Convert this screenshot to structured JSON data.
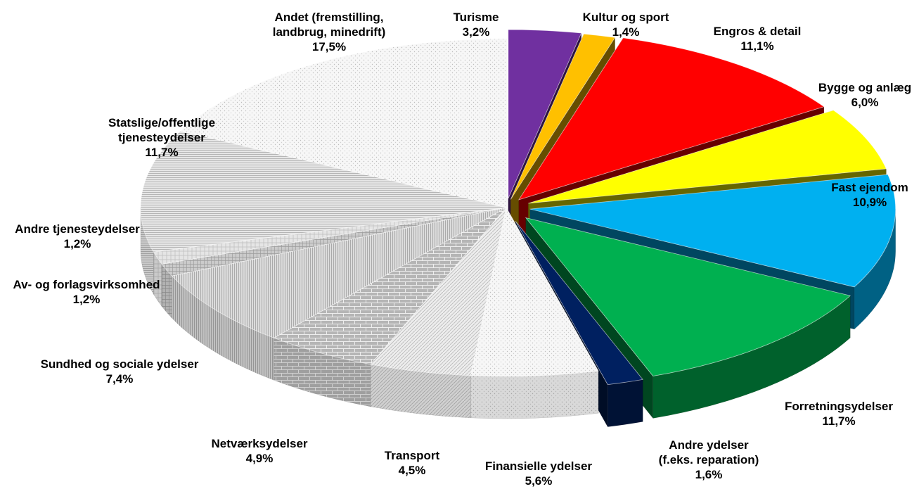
{
  "chart_data": {
    "type": "pie",
    "title": "",
    "style": "3d-exploded",
    "categories": [
      "Turisme",
      "Kultur og sport",
      "Engros & detail",
      "Bygge og anlæg",
      "Fast ejendom",
      "Forretningsydelser",
      "Andre ydelser (f.eks. reparation)",
      "Finansielle ydelser",
      "Transport",
      "Netværksydelser",
      "Sundhed og sociale ydelser",
      "Av- og forlagsvirksomhed",
      "Andre tjenesteydelser",
      "Statslige/offentlige tjenesteydelser",
      "Andet (fremstilling, landbrug, minedrift)"
    ],
    "values": [
      3.2,
      1.4,
      11.1,
      6.0,
      10.9,
      11.7,
      1.6,
      5.6,
      4.5,
      4.9,
      7.4,
      1.2,
      1.2,
      11.7,
      17.5
    ],
    "slices": [
      {
        "label_lines": [
          "Turisme"
        ],
        "value_label": "3,2%",
        "color": "#7030A0",
        "exploded": true
      },
      {
        "label_lines": [
          "Kultur og sport"
        ],
        "value_label": "1,4%",
        "color": "#FFC000",
        "exploded": true
      },
      {
        "label_lines": [
          "Engros & detail"
        ],
        "value_label": "11,1%",
        "color": "#FF0000",
        "exploded": true
      },
      {
        "label_lines": [
          "Bygge og anlæg"
        ],
        "value_label": "6,0%",
        "color": "#FFFF00",
        "exploded": true
      },
      {
        "label_lines": [
          "Fast ejendom"
        ],
        "value_label": "10,9%",
        "color": "#00B0F0",
        "exploded": true
      },
      {
        "label_lines": [
          "Forretningsydelser"
        ],
        "value_label": "11,7%",
        "color": "#00B050",
        "exploded": true
      },
      {
        "label_lines": [
          "Andre ydelser",
          "(f.eks. reparation)"
        ],
        "value_label": "1,6%",
        "color": "#002060",
        "exploded": true
      },
      {
        "label_lines": [
          "Finansielle ydelser"
        ],
        "value_label": "5,6%",
        "color": "#EAEAEA",
        "exploded": false
      },
      {
        "label_lines": [
          "Transport"
        ],
        "value_label": "4,5%",
        "color": "#D4D4D4",
        "exploded": false
      },
      {
        "label_lines": [
          "Netværksydelser"
        ],
        "value_label": "4,9%",
        "color": "#C8C8C8",
        "exploded": false
      },
      {
        "label_lines": [
          "Sundhed og sociale ydelser"
        ],
        "value_label": "7,4%",
        "color": "#E2E2E2",
        "exploded": false
      },
      {
        "label_lines": [
          "Av- og forlagsvirksomhed"
        ],
        "value_label": "1,2%",
        "color": "#B0B0B0",
        "exploded": false
      },
      {
        "label_lines": [
          "Andre tjenesteydelser"
        ],
        "value_label": "1,2%",
        "color": "#F2F2F2",
        "exploded": false
      },
      {
        "label_lines": [
          "Statslige/offentlige",
          "tjenesteydelser"
        ],
        "value_label": "11,7%",
        "color": "#D9D9D9",
        "exploded": false
      },
      {
        "label_lines": [
          "Andet (fremstilling,",
          "landbrug, minedrift)"
        ],
        "value_label": "17,5%",
        "color": "#F7F7F7",
        "exploded": false
      }
    ],
    "legend": "none",
    "grid": false
  }
}
